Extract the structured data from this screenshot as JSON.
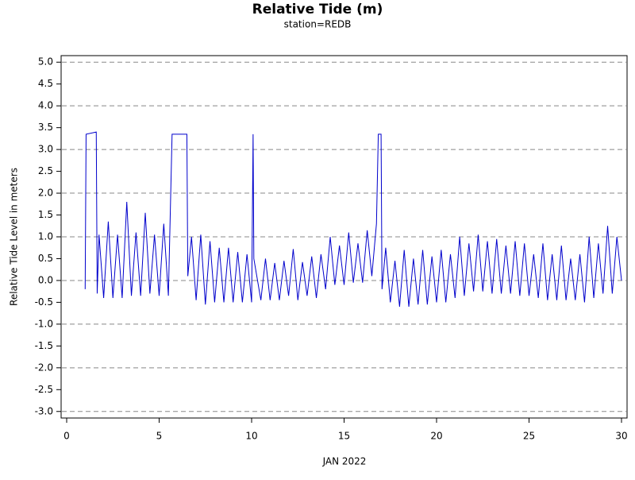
{
  "chart_data": {
    "type": "line",
    "title": "Relative Tide (m)",
    "subtitle": "station=REDB",
    "xlabel": "JAN 2022",
    "ylabel": "Relative Tide Level in meters",
    "xlim": [
      -0.3,
      30.3
    ],
    "xticks": [
      0,
      5,
      10,
      15,
      20,
      25,
      30
    ],
    "ylim": [
      -3.15,
      5.15
    ],
    "yticks": [
      {
        "value": -3,
        "label": "-3.0"
      },
      -2.5,
      {
        "value": -2,
        "label": "-2.0"
      },
      -1.5,
      {
        "value": -1,
        "label": "-1.0"
      },
      -0.5,
      {
        "value": 0,
        "label": "0.0"
      },
      0.5,
      {
        "value": 1,
        "label": "1.0"
      },
      1.5,
      {
        "value": 2,
        "label": "2.0"
      },
      2.5,
      {
        "value": 3,
        "label": "3.0"
      },
      3.5,
      {
        "value": 4,
        "label": "4.0"
      },
      4.5,
      {
        "value": 5,
        "label": "5.0"
      }
    ],
    "grid": true,
    "series": [
      {
        "name": "Relative Tide",
        "color": "#0000cc",
        "x": [
          1.0,
          1.05,
          1.6,
          1.65,
          1.75,
          2.0,
          2.25,
          2.5,
          2.75,
          3.0,
          3.25,
          3.5,
          3.75,
          4.0,
          4.25,
          4.5,
          4.75,
          5.0,
          5.25,
          5.5,
          5.7,
          6.5,
          6.55,
          6.75,
          7.0,
          7.25,
          7.5,
          7.75,
          8.0,
          8.25,
          8.5,
          8.75,
          9.0,
          9.25,
          9.5,
          9.75,
          10.0,
          10.08,
          10.12,
          10.5,
          10.75,
          11.0,
          11.25,
          11.5,
          11.75,
          12.0,
          12.25,
          12.5,
          12.75,
          13.0,
          13.25,
          13.5,
          13.75,
          14.0,
          14.25,
          14.5,
          14.75,
          15.0,
          15.25,
          15.5,
          15.75,
          16.0,
          16.25,
          16.5,
          16.75,
          16.85,
          17.0,
          17.05,
          17.25,
          17.5,
          17.75,
          18.0,
          18.25,
          18.5,
          18.75,
          19.0,
          19.25,
          19.5,
          19.75,
          20.0,
          20.25,
          20.5,
          20.75,
          21.0,
          21.25,
          21.5,
          21.75,
          22.0,
          22.25,
          22.5,
          22.75,
          23.0,
          23.25,
          23.5,
          23.75,
          24.0,
          24.25,
          24.5,
          24.75,
          25.0,
          25.25,
          25.5,
          25.75,
          26.0,
          26.25,
          26.5,
          26.75,
          27.0,
          27.25,
          27.5,
          27.75,
          28.0,
          28.25,
          28.5,
          28.75,
          29.0,
          29.25,
          29.5,
          29.75,
          30.0
        ],
        "values": [
          -0.2,
          3.35,
          3.4,
          -0.3,
          1.05,
          -0.4,
          1.35,
          -0.4,
          1.05,
          -0.4,
          1.8,
          -0.35,
          1.1,
          -0.35,
          1.55,
          -0.3,
          1.05,
          -0.35,
          1.3,
          -0.35,
          3.35,
          3.35,
          0.1,
          1.0,
          -0.45,
          1.05,
          -0.55,
          0.9,
          -0.5,
          0.75,
          -0.5,
          0.75,
          -0.5,
          0.65,
          -0.5,
          0.6,
          -0.5,
          3.35,
          0.5,
          -0.45,
          0.5,
          -0.45,
          0.4,
          -0.45,
          0.45,
          -0.35,
          0.72,
          -0.45,
          0.42,
          -0.35,
          0.55,
          -0.4,
          0.6,
          -0.2,
          1.0,
          -0.1,
          0.8,
          -0.1,
          1.1,
          -0.05,
          0.85,
          -0.05,
          1.15,
          0.1,
          1.3,
          3.35,
          3.35,
          -0.2,
          0.75,
          -0.5,
          0.45,
          -0.6,
          0.7,
          -0.6,
          0.5,
          -0.55,
          0.7,
          -0.55,
          0.55,
          -0.5,
          0.7,
          -0.5,
          0.6,
          -0.4,
          1.0,
          -0.35,
          0.85,
          -0.25,
          1.05,
          -0.25,
          0.9,
          -0.3,
          0.95,
          -0.3,
          0.8,
          -0.3,
          0.9,
          -0.35,
          0.85,
          -0.35,
          0.6,
          -0.4,
          0.85,
          -0.45,
          0.6,
          -0.45,
          0.8,
          -0.45,
          0.5,
          -0.45,
          0.6,
          -0.5,
          1.0,
          -0.4,
          0.85,
          -0.3,
          1.25,
          -0.3,
          1.0,
          0.0
        ]
      }
    ]
  }
}
